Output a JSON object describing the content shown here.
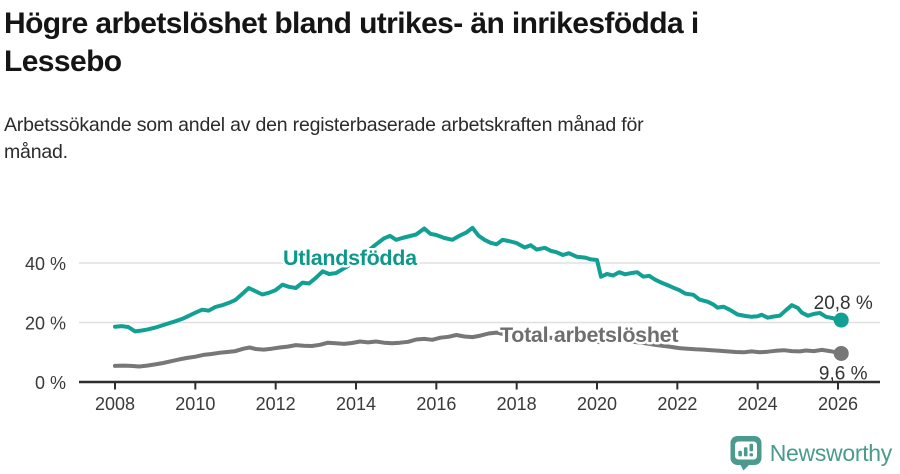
{
  "header": {
    "title": "Högre arbetslöshet bland utrikes- än inrikesfödda i\nLessebo",
    "subtitle": "Arbetssökande som andel av den registerbaserade arbetskraften månad för\nmånad."
  },
  "footer": {
    "brand": "Newsworthy",
    "logo_icon": "bar-chart-speech-bubble-icon",
    "brand_color": "#4a9b8e"
  },
  "chart_data": {
    "type": "line",
    "title": "Högre arbetslöshet bland utrikes- än inrikesfödda i Lessebo",
    "subtitle": "Arbetssökande som andel av den registerbaserade arbetskraften månad för månad.",
    "grid": true,
    "legend_position": "inline-labels",
    "style": {
      "grid_color": "#e0e0e0",
      "axis_color": "#2e2e2e",
      "tick_text_color": "#3a3a3a",
      "value_text_color": "#333333",
      "tick_font_size": 18,
      "series_label_font_size": 21.5,
      "end_label_font_size": 19
    },
    "x_axis": {
      "label": "",
      "ticks": [
        2008,
        2010,
        2012,
        2014,
        2016,
        2018,
        2020,
        2022,
        2024,
        2026
      ],
      "range": [
        2007.1,
        2027.0
      ]
    },
    "y_axis": {
      "label": "",
      "ticks": [
        {
          "value": 0,
          "label": "0 %"
        },
        {
          "value": 20,
          "label": "20 %"
        },
        {
          "value": 40,
          "label": "40 %"
        }
      ],
      "range": [
        0,
        61
      ]
    },
    "series": [
      {
        "name": "Utlandsfödda",
        "color": "#12a094",
        "label_color": "#0e988c",
        "end_label": "20,8 %",
        "end_value": 20.8,
        "label_pos": {
          "x": 283,
          "y": 65
        },
        "end_label_dy": -11,
        "points": [
          [
            2008.0,
            18.6
          ],
          [
            2008.17,
            18.8
          ],
          [
            2008.33,
            18.5
          ],
          [
            2008.5,
            17.0
          ],
          [
            2008.67,
            17.3
          ],
          [
            2008.83,
            17.7
          ],
          [
            2009.0,
            18.3
          ],
          [
            2009.17,
            19.0
          ],
          [
            2009.33,
            19.7
          ],
          [
            2009.5,
            20.4
          ],
          [
            2009.67,
            21.2
          ],
          [
            2009.83,
            22.2
          ],
          [
            2010.0,
            23.3
          ],
          [
            2010.17,
            24.3
          ],
          [
            2010.33,
            24.0
          ],
          [
            2010.5,
            25.2
          ],
          [
            2010.67,
            25.8
          ],
          [
            2010.83,
            26.6
          ],
          [
            2011.0,
            27.6
          ],
          [
            2011.17,
            29.6
          ],
          [
            2011.33,
            31.6
          ],
          [
            2011.5,
            30.5
          ],
          [
            2011.67,
            29.4
          ],
          [
            2011.83,
            30.0
          ],
          [
            2012.0,
            30.9
          ],
          [
            2012.17,
            32.7
          ],
          [
            2012.33,
            32.0
          ],
          [
            2012.5,
            31.6
          ],
          [
            2012.67,
            33.4
          ],
          [
            2012.83,
            33.1
          ],
          [
            2013.0,
            35.0
          ],
          [
            2013.17,
            37.2
          ],
          [
            2013.33,
            36.3
          ],
          [
            2013.5,
            36.6
          ],
          [
            2013.75,
            38.6
          ],
          [
            2014.0,
            40.8
          ],
          [
            2014.25,
            43.5
          ],
          [
            2014.5,
            46.3
          ],
          [
            2014.7,
            48.3
          ],
          [
            2014.85,
            49.1
          ],
          [
            2015.0,
            47.8
          ],
          [
            2015.15,
            48.4
          ],
          [
            2015.3,
            48.9
          ],
          [
            2015.5,
            49.6
          ],
          [
            2015.7,
            51.6
          ],
          [
            2015.85,
            49.8
          ],
          [
            2016.0,
            49.4
          ],
          [
            2016.2,
            48.4
          ],
          [
            2016.4,
            47.8
          ],
          [
            2016.6,
            49.3
          ],
          [
            2016.75,
            50.3
          ],
          [
            2016.9,
            51.8
          ],
          [
            2017.05,
            49.2
          ],
          [
            2017.2,
            47.8
          ],
          [
            2017.35,
            46.8
          ],
          [
            2017.5,
            46.3
          ],
          [
            2017.65,
            47.8
          ],
          [
            2017.8,
            47.4
          ],
          [
            2018.0,
            46.7
          ],
          [
            2018.2,
            45.2
          ],
          [
            2018.35,
            46.0
          ],
          [
            2018.5,
            44.5
          ],
          [
            2018.7,
            45.1
          ],
          [
            2018.85,
            44.1
          ],
          [
            2019.0,
            43.6
          ],
          [
            2019.15,
            42.7
          ],
          [
            2019.3,
            43.3
          ],
          [
            2019.5,
            42.1
          ],
          [
            2019.7,
            41.8
          ],
          [
            2019.85,
            41.2
          ],
          [
            2020.0,
            41.0
          ],
          [
            2020.1,
            35.4
          ],
          [
            2020.25,
            36.3
          ],
          [
            2020.4,
            35.8
          ],
          [
            2020.55,
            36.9
          ],
          [
            2020.7,
            36.2
          ],
          [
            2020.85,
            36.6
          ],
          [
            2021.0,
            36.9
          ],
          [
            2021.15,
            35.4
          ],
          [
            2021.3,
            35.7
          ],
          [
            2021.45,
            34.4
          ],
          [
            2021.6,
            33.4
          ],
          [
            2021.75,
            32.6
          ],
          [
            2021.9,
            31.7
          ],
          [
            2022.05,
            30.9
          ],
          [
            2022.2,
            29.7
          ],
          [
            2022.4,
            29.3
          ],
          [
            2022.55,
            27.7
          ],
          [
            2022.75,
            27.0
          ],
          [
            2022.9,
            26.0
          ],
          [
            2023.0,
            25.0
          ],
          [
            2023.15,
            25.3
          ],
          [
            2023.3,
            24.3
          ],
          [
            2023.5,
            22.7
          ],
          [
            2023.7,
            22.2
          ],
          [
            2023.85,
            21.9
          ],
          [
            2024.0,
            22.1
          ],
          [
            2024.1,
            22.6
          ],
          [
            2024.25,
            21.6
          ],
          [
            2024.4,
            22.0
          ],
          [
            2024.55,
            22.3
          ],
          [
            2024.7,
            24.1
          ],
          [
            2024.85,
            25.8
          ],
          [
            2025.0,
            24.9
          ],
          [
            2025.1,
            23.3
          ],
          [
            2025.25,
            22.3
          ],
          [
            2025.4,
            22.9
          ],
          [
            2025.55,
            23.2
          ],
          [
            2025.7,
            21.9
          ],
          [
            2025.85,
            21.5
          ],
          [
            2026.0,
            21.0
          ],
          [
            2026.08,
            20.8
          ]
        ]
      },
      {
        "name": "Total arbetslöshet",
        "color": "#777777",
        "label_color": "#6e6e6e",
        "end_label": "9,6 %",
        "end_value": 9.6,
        "label_pos": {
          "x": 500,
          "y": 142
        },
        "end_label_dy": 26,
        "points": [
          [
            2008.0,
            5.4
          ],
          [
            2008.2,
            5.5
          ],
          [
            2008.4,
            5.4
          ],
          [
            2008.6,
            5.2
          ],
          [
            2008.8,
            5.5
          ],
          [
            2009.0,
            5.9
          ],
          [
            2009.2,
            6.4
          ],
          [
            2009.4,
            7.0
          ],
          [
            2009.6,
            7.6
          ],
          [
            2009.8,
            8.1
          ],
          [
            2010.0,
            8.5
          ],
          [
            2010.2,
            9.1
          ],
          [
            2010.4,
            9.4
          ],
          [
            2010.6,
            9.8
          ],
          [
            2010.8,
            10.1
          ],
          [
            2011.0,
            10.4
          ],
          [
            2011.2,
            11.2
          ],
          [
            2011.35,
            11.6
          ],
          [
            2011.5,
            11.1
          ],
          [
            2011.7,
            10.9
          ],
          [
            2011.9,
            11.2
          ],
          [
            2012.1,
            11.6
          ],
          [
            2012.3,
            11.9
          ],
          [
            2012.5,
            12.4
          ],
          [
            2012.7,
            12.2
          ],
          [
            2012.9,
            12.1
          ],
          [
            2013.1,
            12.5
          ],
          [
            2013.3,
            13.2
          ],
          [
            2013.5,
            13.0
          ],
          [
            2013.7,
            12.8
          ],
          [
            2013.9,
            13.1
          ],
          [
            2014.1,
            13.6
          ],
          [
            2014.3,
            13.3
          ],
          [
            2014.5,
            13.6
          ],
          [
            2014.7,
            13.2
          ],
          [
            2014.9,
            13.0
          ],
          [
            2015.1,
            13.2
          ],
          [
            2015.3,
            13.5
          ],
          [
            2015.5,
            14.3
          ],
          [
            2015.7,
            14.5
          ],
          [
            2015.9,
            14.2
          ],
          [
            2016.1,
            14.9
          ],
          [
            2016.3,
            15.2
          ],
          [
            2016.5,
            15.8
          ],
          [
            2016.7,
            15.3
          ],
          [
            2016.9,
            15.1
          ],
          [
            2017.1,
            15.6
          ],
          [
            2017.3,
            16.3
          ],
          [
            2017.5,
            16.6
          ],
          [
            2017.7,
            16.0
          ],
          [
            2017.9,
            15.8
          ],
          [
            2018.1,
            15.6
          ],
          [
            2018.4,
            15.3
          ],
          [
            2018.7,
            15.0
          ],
          [
            2019.0,
            14.7
          ],
          [
            2019.3,
            14.4
          ],
          [
            2019.6,
            14.2
          ],
          [
            2019.9,
            13.9
          ],
          [
            2020.05,
            13.4
          ],
          [
            2020.3,
            14.0
          ],
          [
            2020.6,
            13.8
          ],
          [
            2020.9,
            13.5
          ],
          [
            2021.2,
            13.0
          ],
          [
            2021.5,
            12.4
          ],
          [
            2021.8,
            11.9
          ],
          [
            2022.05,
            11.4
          ],
          [
            2022.25,
            11.2
          ],
          [
            2022.45,
            11.0
          ],
          [
            2022.65,
            10.9
          ],
          [
            2022.85,
            10.7
          ],
          [
            2023.05,
            10.5
          ],
          [
            2023.25,
            10.3
          ],
          [
            2023.45,
            10.1
          ],
          [
            2023.65,
            10.0
          ],
          [
            2023.85,
            10.3
          ],
          [
            2024.05,
            10.0
          ],
          [
            2024.25,
            10.2
          ],
          [
            2024.45,
            10.5
          ],
          [
            2024.65,
            10.7
          ],
          [
            2024.85,
            10.4
          ],
          [
            2025.05,
            10.3
          ],
          [
            2025.2,
            10.6
          ],
          [
            2025.4,
            10.4
          ],
          [
            2025.6,
            10.8
          ],
          [
            2025.8,
            10.4
          ],
          [
            2025.95,
            10.0
          ],
          [
            2026.08,
            9.6
          ]
        ]
      }
    ]
  }
}
